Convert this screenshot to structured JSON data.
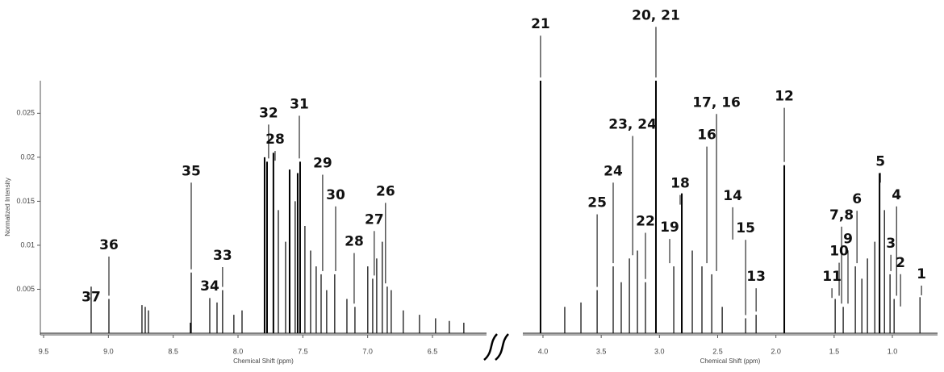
{
  "chart_data": [
    {
      "type": "spectrum",
      "x_label": "Chemical Shift (ppm)",
      "y_label": "Normalized Intensity",
      "color": "#000000",
      "xlim": [
        9.525,
        6.083
      ],
      "ylim": [
        0,
        0.0287
      ],
      "xticks": [
        9.5,
        {
          "value": 9,
          "label": "9.0"
        },
        8.5,
        {
          "value": 8,
          "label": "8.0"
        },
        7.5,
        {
          "value": 7,
          "label": "7.0"
        },
        6.5
      ],
      "yticks": [
        0.005,
        0.01,
        0.015,
        0.02,
        0.025
      ],
      "x": [
        9.133,
        8.996,
        8.741,
        8.716,
        8.691,
        8.368,
        8.361,
        8.218,
        8.162,
        8.119,
        8.032,
        7.969,
        7.795,
        7.776,
        7.727,
        7.689,
        7.633,
        7.602,
        7.559,
        7.54,
        7.521,
        7.484,
        7.44,
        7.397,
        7.359,
        7.316,
        7.254,
        7.16,
        7.098,
        6.999,
        6.961,
        6.93,
        6.887,
        6.849,
        6.818,
        6.725,
        6.6,
        6.476,
        6.37,
        6.258
      ],
      "values": [
        0.0053,
        0.0039,
        0.0032,
        0.003,
        0.0026,
        0.0012,
        0.0069,
        0.0039,
        0.0035,
        0.0049,
        0.0021,
        0.0026,
        0.02,
        0.0195,
        0.0205,
        0.014,
        0.0104,
        0.0186,
        0.015,
        0.0182,
        0.0195,
        0.0122,
        0.0094,
        0.0076,
        0.0067,
        0.0049,
        0.0067,
        0.0039,
        0.003,
        0.0076,
        0.0062,
        0.0085,
        0.0104,
        0.0053,
        0.0049,
        0.0026,
        0.0021,
        0.0017,
        0.0014,
        0.0012
      ],
      "annotations": [
        {
          "text": "37",
          "x": 9.133,
          "y": 0.0041
        },
        {
          "text": "36",
          "x": 8.996,
          "y": 0.01
        },
        {
          "text": "35",
          "x": 8.361,
          "y": 0.0184
        },
        {
          "text": "34",
          "x": 8.218,
          "y": 0.0053
        },
        {
          "text": "33",
          "x": 8.119,
          "y": 0.0088
        },
        {
          "text": "28",
          "x": 7.714,
          "y": 0.022
        },
        {
          "text": "32",
          "x": 7.764,
          "y": 0.025
        },
        {
          "text": "31",
          "x": 7.527,
          "y": 0.026
        },
        {
          "text": "29",
          "x": 7.347,
          "y": 0.0193
        },
        {
          "text": "30",
          "x": 7.247,
          "y": 0.0157
        },
        {
          "text": "26",
          "x": 6.862,
          "y": 0.0161
        },
        {
          "text": "27",
          "x": 6.949,
          "y": 0.0129
        },
        {
          "text": "28",
          "x": 7.104,
          "y": 0.0104
        }
      ]
    },
    {
      "type": "spectrum",
      "x_label": "Chemical Shift (ppm)",
      "color": "#000000",
      "xlim": [
        4.173,
        0.612
      ],
      "ylim": [
        0,
        0.0287
      ],
      "xticks": [
        {
          "value": 4,
          "label": "4.0"
        },
        3.5,
        {
          "value": 3,
          "label": "3.0"
        },
        2.5,
        {
          "value": 2,
          "label": "2.0"
        },
        1.5,
        {
          "value": 1,
          "label": "1.0"
        }
      ],
      "x": [
        4.021,
        3.813,
        3.674,
        3.535,
        3.397,
        3.328,
        3.258,
        3.189,
        3.12,
        3.03,
        2.877,
        2.808,
        2.718,
        2.635,
        2.551,
        2.461,
        2.26,
        2.17,
        1.928,
        1.491,
        1.422,
        1.318,
        1.262,
        1.214,
        1.151,
        1.11,
        1.068,
        1.02,
        0.985,
        0.763
      ],
      "values": [
        0.0287,
        0.003,
        0.0035,
        0.0049,
        0.0076,
        0.0058,
        0.0085,
        0.0094,
        0.0058,
        0.0287,
        0.0076,
        0.0159,
        0.0094,
        0.0076,
        0.0067,
        0.003,
        0.0017,
        0.0021,
        0.0191,
        0.0039,
        0.003,
        0.0076,
        0.0062,
        0.0085,
        0.0104,
        0.0182,
        0.014,
        0.0067,
        0.0039,
        0.0041
      ],
      "annotations": [
        {
          "text": "21",
          "x": 4.021,
          "y": 0.0351
        },
        {
          "text": "20, 21",
          "x": 3.03,
          "y": 0.0361
        },
        {
          "text": "25",
          "x": 3.535,
          "y": 0.0148
        },
        {
          "text": "24",
          "x": 3.397,
          "y": 0.0184
        },
        {
          "text": "23, 24",
          "x": 3.23,
          "y": 0.0237
        },
        {
          "text": "22",
          "x": 3.12,
          "y": 0.0127
        },
        {
          "text": "19",
          "x": 2.912,
          "y": 0.012
        },
        {
          "text": "18",
          "x": 2.822,
          "y": 0.017
        },
        {
          "text": "17, 16",
          "x": 2.51,
          "y": 0.0262
        },
        {
          "text": "16",
          "x": 2.593,
          "y": 0.0225
        },
        {
          "text": "14",
          "x": 2.371,
          "y": 0.0156
        },
        {
          "text": "15",
          "x": 2.26,
          "y": 0.0119
        },
        {
          "text": "13",
          "x": 2.17,
          "y": 0.0064
        },
        {
          "text": "12",
          "x": 1.928,
          "y": 0.0269
        },
        {
          "text": "11",
          "x": 1.519,
          "y": 0.0064
        },
        {
          "text": "10",
          "x": 1.457,
          "y": 0.0093
        },
        {
          "text": "9",
          "x": 1.381,
          "y": 0.0107
        },
        {
          "text": "7,8",
          "x": 1.436,
          "y": 0.0134
        },
        {
          "text": "6",
          "x": 1.304,
          "y": 0.0152
        },
        {
          "text": "5",
          "x": 1.103,
          "y": 0.0195
        },
        {
          "text": "4",
          "x": 0.964,
          "y": 0.0157
        },
        {
          "text": "3",
          "x": 1.013,
          "y": 0.0102
        },
        {
          "text": "2",
          "x": 0.93,
          "y": 0.008
        },
        {
          "text": "1",
          "x": 0.75,
          "y": 0.0067
        }
      ]
    }
  ]
}
